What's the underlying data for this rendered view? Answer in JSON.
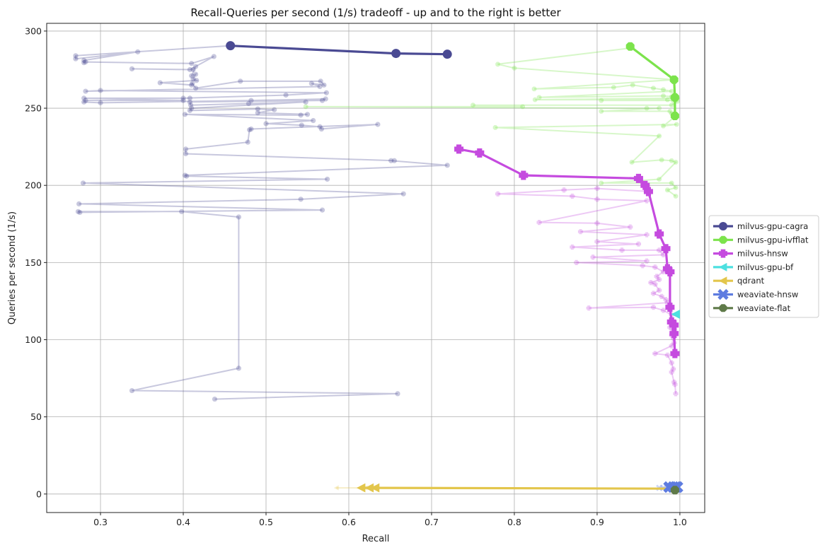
{
  "chart_data": {
    "type": "line",
    "title": "Recall-Queries per second (1/s) tradeoff - up and to the right is better",
    "xlabel": "Recall",
    "ylabel": "Queries per second (1/s)",
    "xlim": [
      0.235,
      1.03
    ],
    "ylim": [
      -12,
      305
    ],
    "xticks": [
      0.3,
      0.4,
      0.5,
      0.6,
      0.7,
      0.8,
      0.9,
      1.0
    ],
    "xtick_labels": [
      "0.3",
      "0.4",
      "0.5",
      "0.6",
      "0.7",
      "0.8",
      "0.9",
      "1.0"
    ],
    "yticks": [
      0,
      50,
      100,
      150,
      200,
      250,
      300
    ],
    "ytick_labels": [
      "0",
      "50",
      "100",
      "150",
      "200",
      "250",
      "300"
    ],
    "grid": true,
    "legend_position": "right-outside",
    "series": [
      {
        "name": "milvus-gpu-cagra",
        "color": "#4a4a93",
        "marker": "circle",
        "frontier": [
          [
            0.457,
            290.5
          ],
          [
            0.657,
            285.5
          ],
          [
            0.719,
            285
          ]
        ],
        "points": [
          [
            0.456,
            290.5
          ],
          [
            0.27,
            284
          ],
          [
            0.27,
            282
          ],
          [
            0.345,
            286.5
          ],
          [
            0.28,
            281
          ],
          [
            0.28,
            279.5
          ],
          [
            0.282,
            280
          ],
          [
            0.41,
            279
          ],
          [
            0.437,
            283.5
          ],
          [
            0.408,
            275
          ],
          [
            0.338,
            275.5
          ],
          [
            0.412,
            275
          ],
          [
            0.415,
            277
          ],
          [
            0.41,
            271
          ],
          [
            0.415,
            272
          ],
          [
            0.412,
            269
          ],
          [
            0.416,
            268
          ],
          [
            0.372,
            266.5
          ],
          [
            0.41,
            265
          ],
          [
            0.411,
            266
          ],
          [
            0.415,
            263
          ],
          [
            0.469,
            267.5
          ],
          [
            0.566,
            267.5
          ],
          [
            0.57,
            265
          ],
          [
            0.555,
            266
          ],
          [
            0.565,
            264
          ],
          [
            0.282,
            261
          ],
          [
            0.3,
            261.5
          ],
          [
            0.573,
            260
          ],
          [
            0.524,
            258.5
          ],
          [
            0.4,
            256.5
          ],
          [
            0.408,
            256.5
          ],
          [
            0.28,
            256.5
          ],
          [
            0.4,
            255
          ],
          [
            0.282,
            255
          ],
          [
            0.28,
            254
          ],
          [
            0.3,
            253.5
          ],
          [
            0.482,
            255
          ],
          [
            0.572,
            256
          ],
          [
            0.568,
            255
          ],
          [
            0.408,
            254
          ],
          [
            0.409,
            252
          ],
          [
            0.479,
            253
          ],
          [
            0.548,
            254
          ],
          [
            0.41,
            250
          ],
          [
            0.408,
            248.5
          ],
          [
            0.49,
            249.5
          ],
          [
            0.51,
            249
          ],
          [
            0.49,
            247
          ],
          [
            0.55,
            246
          ],
          [
            0.542,
            245.5
          ],
          [
            0.402,
            246
          ],
          [
            0.557,
            242
          ],
          [
            0.5,
            240
          ],
          [
            0.543,
            239
          ],
          [
            0.565,
            238
          ],
          [
            0.567,
            236.5
          ],
          [
            0.635,
            239.5
          ],
          [
            0.482,
            236.5
          ],
          [
            0.48,
            236
          ],
          [
            0.478,
            228
          ],
          [
            0.403,
            223.5
          ],
          [
            0.403,
            220.5
          ],
          [
            0.655,
            216
          ],
          [
            0.651,
            216
          ],
          [
            0.719,
            213
          ],
          [
            0.402,
            206.5
          ],
          [
            0.404,
            206
          ],
          [
            0.574,
            204
          ],
          [
            0.279,
            201.5
          ],
          [
            0.666,
            194.5
          ],
          [
            0.542,
            191
          ],
          [
            0.274,
            188
          ],
          [
            0.568,
            184
          ],
          [
            0.275,
            182.5
          ],
          [
            0.273,
            183
          ],
          [
            0.398,
            183
          ],
          [
            0.467,
            179.5
          ],
          [
            0.467,
            81.5
          ],
          [
            0.338,
            67
          ],
          [
            0.659,
            65
          ],
          [
            0.438,
            61.5
          ]
        ]
      },
      {
        "name": "milvus-gpu-ivfflat",
        "color": "#7ce34c",
        "marker": "octagon",
        "frontier": [
          [
            0.94,
            290
          ],
          [
            0.993,
            268.5
          ],
          [
            0.994,
            257
          ],
          [
            0.994,
            245
          ]
        ],
        "points": [
          [
            0.94,
            290
          ],
          [
            0.941,
            289
          ],
          [
            0.78,
            278.5
          ],
          [
            0.8,
            276
          ],
          [
            0.993,
            268.5
          ],
          [
            0.824,
            262.5
          ],
          [
            0.92,
            263.5
          ],
          [
            0.943,
            265
          ],
          [
            0.968,
            263
          ],
          [
            0.98,
            262
          ],
          [
            0.99,
            261
          ],
          [
            0.83,
            257
          ],
          [
            0.98,
            258
          ],
          [
            0.99,
            257.5
          ],
          [
            0.991,
            256.5
          ],
          [
            0.997,
            256.5
          ],
          [
            0.825,
            255.5
          ],
          [
            0.985,
            255.5
          ],
          [
            0.905,
            255
          ],
          [
            0.992,
            255
          ],
          [
            0.997,
            254.5
          ],
          [
            0.99,
            252
          ],
          [
            0.75,
            252
          ],
          [
            0.81,
            251
          ],
          [
            0.548,
            251
          ],
          [
            0.96,
            250
          ],
          [
            0.975,
            250
          ],
          [
            0.905,
            248
          ],
          [
            0.988,
            248
          ],
          [
            0.99,
            246.5
          ],
          [
            0.993,
            245.5
          ],
          [
            0.994,
            244.5
          ],
          [
            0.98,
            238.5
          ],
          [
            0.996,
            239.5
          ],
          [
            0.777,
            237.5
          ],
          [
            0.975,
            232
          ],
          [
            0.942,
            215
          ],
          [
            0.978,
            216.5
          ],
          [
            0.99,
            216
          ],
          [
            0.995,
            215
          ],
          [
            0.975,
            204
          ],
          [
            0.905,
            201.5
          ],
          [
            0.99,
            201.5
          ],
          [
            0.995,
            198.5
          ],
          [
            0.985,
            197
          ],
          [
            0.995,
            193
          ]
        ]
      },
      {
        "name": "milvus-hnsw",
        "color": "#c54bdf",
        "marker": "plus",
        "frontier": [
          [
            0.733,
            223.5
          ],
          [
            0.758,
            221
          ],
          [
            0.811,
            206.5
          ],
          [
            0.95,
            204.5
          ],
          [
            0.958,
            200
          ],
          [
            0.962,
            196
          ],
          [
            0.975,
            168.5
          ],
          [
            0.983,
            159
          ],
          [
            0.985,
            146
          ],
          [
            0.988,
            144
          ],
          [
            0.988,
            121
          ],
          [
            0.99,
            111.5
          ],
          [
            0.993,
            109.5
          ],
          [
            0.993,
            104
          ],
          [
            0.994,
            91
          ]
        ],
        "points": [
          [
            0.733,
            223.5
          ],
          [
            0.758,
            221
          ],
          [
            0.811,
            206.5
          ],
          [
            0.95,
            204.5
          ],
          [
            0.958,
            200
          ],
          [
            0.962,
            196
          ],
          [
            0.9,
            198
          ],
          [
            0.86,
            197
          ],
          [
            0.78,
            194.5
          ],
          [
            0.87,
            193
          ],
          [
            0.9,
            191
          ],
          [
            0.96,
            190
          ],
          [
            0.83,
            176
          ],
          [
            0.9,
            175.5
          ],
          [
            0.94,
            173
          ],
          [
            0.88,
            170
          ],
          [
            0.96,
            168
          ],
          [
            0.9,
            163.5
          ],
          [
            0.95,
            162
          ],
          [
            0.87,
            160
          ],
          [
            0.93,
            158
          ],
          [
            0.975,
            158
          ],
          [
            0.98,
            155
          ],
          [
            0.895,
            153.5
          ],
          [
            0.96,
            151
          ],
          [
            0.875,
            150
          ],
          [
            0.955,
            148
          ],
          [
            0.97,
            147
          ],
          [
            0.98,
            144
          ],
          [
            0.972,
            141
          ],
          [
            0.975,
            139
          ],
          [
            0.965,
            137
          ],
          [
            0.97,
            136
          ],
          [
            0.975,
            132
          ],
          [
            0.968,
            130
          ],
          [
            0.978,
            128
          ],
          [
            0.983,
            126
          ],
          [
            0.985,
            124
          ],
          [
            0.89,
            120.5
          ],
          [
            0.968,
            121
          ],
          [
            0.98,
            119
          ],
          [
            0.99,
            116
          ],
          [
            0.99,
            113
          ],
          [
            0.988,
            108
          ],
          [
            0.99,
            103
          ],
          [
            0.992,
            101
          ],
          [
            0.993,
            98
          ],
          [
            0.99,
            96
          ],
          [
            0.97,
            91
          ],
          [
            0.985,
            90
          ],
          [
            0.99,
            85
          ],
          [
            0.992,
            81
          ],
          [
            0.99,
            79
          ],
          [
            0.993,
            72.5
          ],
          [
            0.994,
            71
          ],
          [
            0.995,
            65
          ]
        ]
      },
      {
        "name": "milvus-gpu-bf",
        "color": "#4de0e0",
        "marker": "triangle-left",
        "frontier": [
          [
            0.995,
            116.5
          ]
        ],
        "points": [
          [
            0.995,
            116.5
          ]
        ]
      },
      {
        "name": "qdrant",
        "color": "#e3c64c",
        "marker": "triangle-left",
        "frontier": [
          [
            0.615,
            4
          ],
          [
            0.625,
            4
          ],
          [
            0.632,
            4
          ],
          [
            0.99,
            3.5
          ]
        ],
        "points": [
          [
            0.585,
            4
          ],
          [
            0.615,
            4
          ],
          [
            0.62,
            4
          ],
          [
            0.625,
            4
          ],
          [
            0.628,
            4
          ],
          [
            0.632,
            4
          ],
          [
            0.99,
            3.5
          ]
        ]
      },
      {
        "name": "weaviate-hnsw",
        "color": "#5e7ce0",
        "marker": "x",
        "frontier": [
          [
            0.987,
            4.5
          ],
          [
            0.992,
            4.5
          ],
          [
            0.995,
            4.5
          ],
          [
            0.997,
            4.5
          ]
        ],
        "points": [
          [
            0.975,
            4
          ],
          [
            0.98,
            4
          ],
          [
            0.985,
            4.5
          ],
          [
            0.987,
            4.5
          ],
          [
            0.99,
            4.5
          ],
          [
            0.992,
            4.5
          ],
          [
            0.995,
            4.5
          ],
          [
            0.997,
            4.5
          ]
        ]
      },
      {
        "name": "weaviate-flat",
        "color": "#5f7a49",
        "marker": "octagon",
        "frontier": [
          [
            0.994,
            2.5
          ]
        ],
        "points": [
          [
            0.994,
            2.5
          ]
        ]
      }
    ]
  }
}
